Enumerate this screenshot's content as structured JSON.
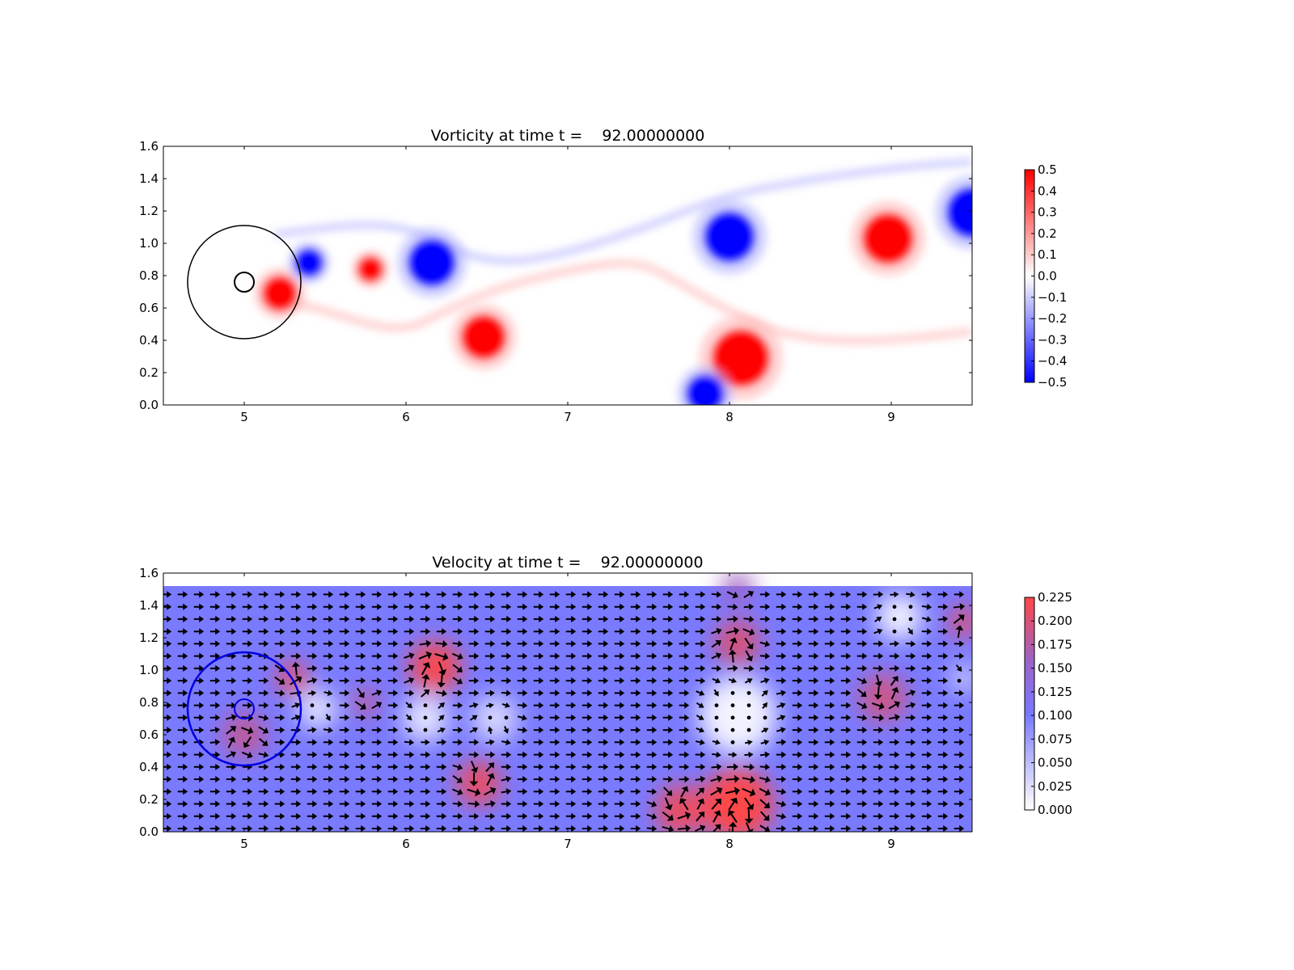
{
  "chart_data": [
    {
      "type": "heatmap",
      "title": "Vorticity at time t =    92.00000000",
      "xlabel": "",
      "ylabel": "",
      "xlim": [
        4.5,
        9.5
      ],
      "ylim": [
        0.0,
        1.6
      ],
      "x_ticks": [
        "5",
        "6",
        "7",
        "8",
        "9"
      ],
      "y_ticks": [
        "0.0",
        "0.2",
        "0.4",
        "0.6",
        "0.8",
        "1.0",
        "1.2",
        "1.4",
        "1.6"
      ],
      "colormap": "bwr",
      "colorbar": {
        "min": -0.5,
        "max": 0.5,
        "tick_labels": [
          "0.5",
          "0.4",
          "0.3",
          "0.2",
          "0.1",
          "0.0",
          "−0.1",
          "−0.2",
          "−0.3",
          "−0.4",
          "−0.5"
        ]
      },
      "vortices": [
        {
          "x": 5.22,
          "y": 0.69,
          "sign": 1,
          "r": 0.11
        },
        {
          "x": 5.4,
          "y": 0.88,
          "sign": -1,
          "r": 0.09
        },
        {
          "x": 5.78,
          "y": 0.84,
          "sign": 1,
          "r": 0.08
        },
        {
          "x": 6.16,
          "y": 0.88,
          "sign": -1,
          "r": 0.15
        },
        {
          "x": 6.48,
          "y": 0.42,
          "sign": 1,
          "r": 0.14
        },
        {
          "x": 8.0,
          "y": 1.04,
          "sign": -1,
          "r": 0.16
        },
        {
          "x": 8.07,
          "y": 0.29,
          "sign": 1,
          "r": 0.18
        },
        {
          "x": 7.85,
          "y": 0.07,
          "sign": -1,
          "r": 0.12
        },
        {
          "x": 8.98,
          "y": 1.03,
          "sign": 1,
          "r": 0.16
        },
        {
          "x": 9.5,
          "y": 1.19,
          "sign": -1,
          "r": 0.16
        }
      ],
      "annotations": {
        "large_circle": {
          "x": 5.0,
          "y": 0.76,
          "r": 0.35,
          "color": "#000000"
        },
        "small_circle": {
          "x": 5.0,
          "y": 0.76,
          "r": 0.06,
          "color": "#000000"
        }
      }
    },
    {
      "type": "quiver",
      "title": "Velocity at time t =    92.00000000",
      "xlabel": "",
      "ylabel": "",
      "xlim": [
        4.5,
        9.5
      ],
      "ylim": [
        0.0,
        1.6
      ],
      "x_ticks": [
        "5",
        "6",
        "7",
        "8",
        "9"
      ],
      "y_ticks": [
        "0.0",
        "0.2",
        "0.4",
        "0.6",
        "0.8",
        "1.0",
        "1.2",
        "1.4",
        "1.6"
      ],
      "colormap": "coolwarm-like",
      "colorbar": {
        "min": 0.0,
        "max": 0.225,
        "tick_labels": [
          "0.225",
          "0.200",
          "0.175",
          "0.150",
          "0.125",
          "0.100",
          "0.075",
          "0.050",
          "0.025",
          "0.000"
        ]
      },
      "field_top_y": 1.52,
      "background_speed": 0.1,
      "regions": [
        {
          "x": 5.3,
          "y": 0.95,
          "r": 0.1,
          "speed": 0.21
        },
        {
          "x": 5.0,
          "y": 0.6,
          "r": 0.14,
          "speed": 0.18
        },
        {
          "x": 5.75,
          "y": 0.8,
          "r": 0.08,
          "speed": 0.19
        },
        {
          "x": 6.18,
          "y": 1.02,
          "r": 0.16,
          "speed": 0.22
        },
        {
          "x": 6.45,
          "y": 0.3,
          "r": 0.14,
          "speed": 0.21
        },
        {
          "x": 8.05,
          "y": 0.17,
          "r": 0.22,
          "speed": 0.23
        },
        {
          "x": 7.7,
          "y": 0.13,
          "r": 0.16,
          "speed": 0.21
        },
        {
          "x": 8.05,
          "y": 1.17,
          "r": 0.14,
          "speed": 0.2
        },
        {
          "x": 8.95,
          "y": 0.83,
          "r": 0.15,
          "speed": 0.19
        },
        {
          "x": 9.45,
          "y": 1.3,
          "r": 0.1,
          "speed": 0.2
        },
        {
          "x": 8.05,
          "y": 1.5,
          "r": 0.1,
          "speed": 0.16
        },
        {
          "x": 5.45,
          "y": 0.76,
          "r": 0.12,
          "speed": 0.02
        },
        {
          "x": 6.12,
          "y": 0.7,
          "r": 0.14,
          "speed": 0.02
        },
        {
          "x": 6.55,
          "y": 0.7,
          "r": 0.14,
          "speed": 0.03
        },
        {
          "x": 8.05,
          "y": 0.72,
          "r": 0.24,
          "speed": 0.01
        },
        {
          "x": 9.05,
          "y": 1.33,
          "r": 0.14,
          "speed": 0.01
        },
        {
          "x": 9.45,
          "y": 0.95,
          "r": 0.08,
          "speed": 0.03
        }
      ],
      "annotations": {
        "large_circle": {
          "x": 5.0,
          "y": 0.76,
          "r": 0.35,
          "color": "#0000dd"
        },
        "small_circle": {
          "x": 5.0,
          "y": 0.76,
          "r": 0.06,
          "color": "#0000dd"
        }
      }
    }
  ]
}
